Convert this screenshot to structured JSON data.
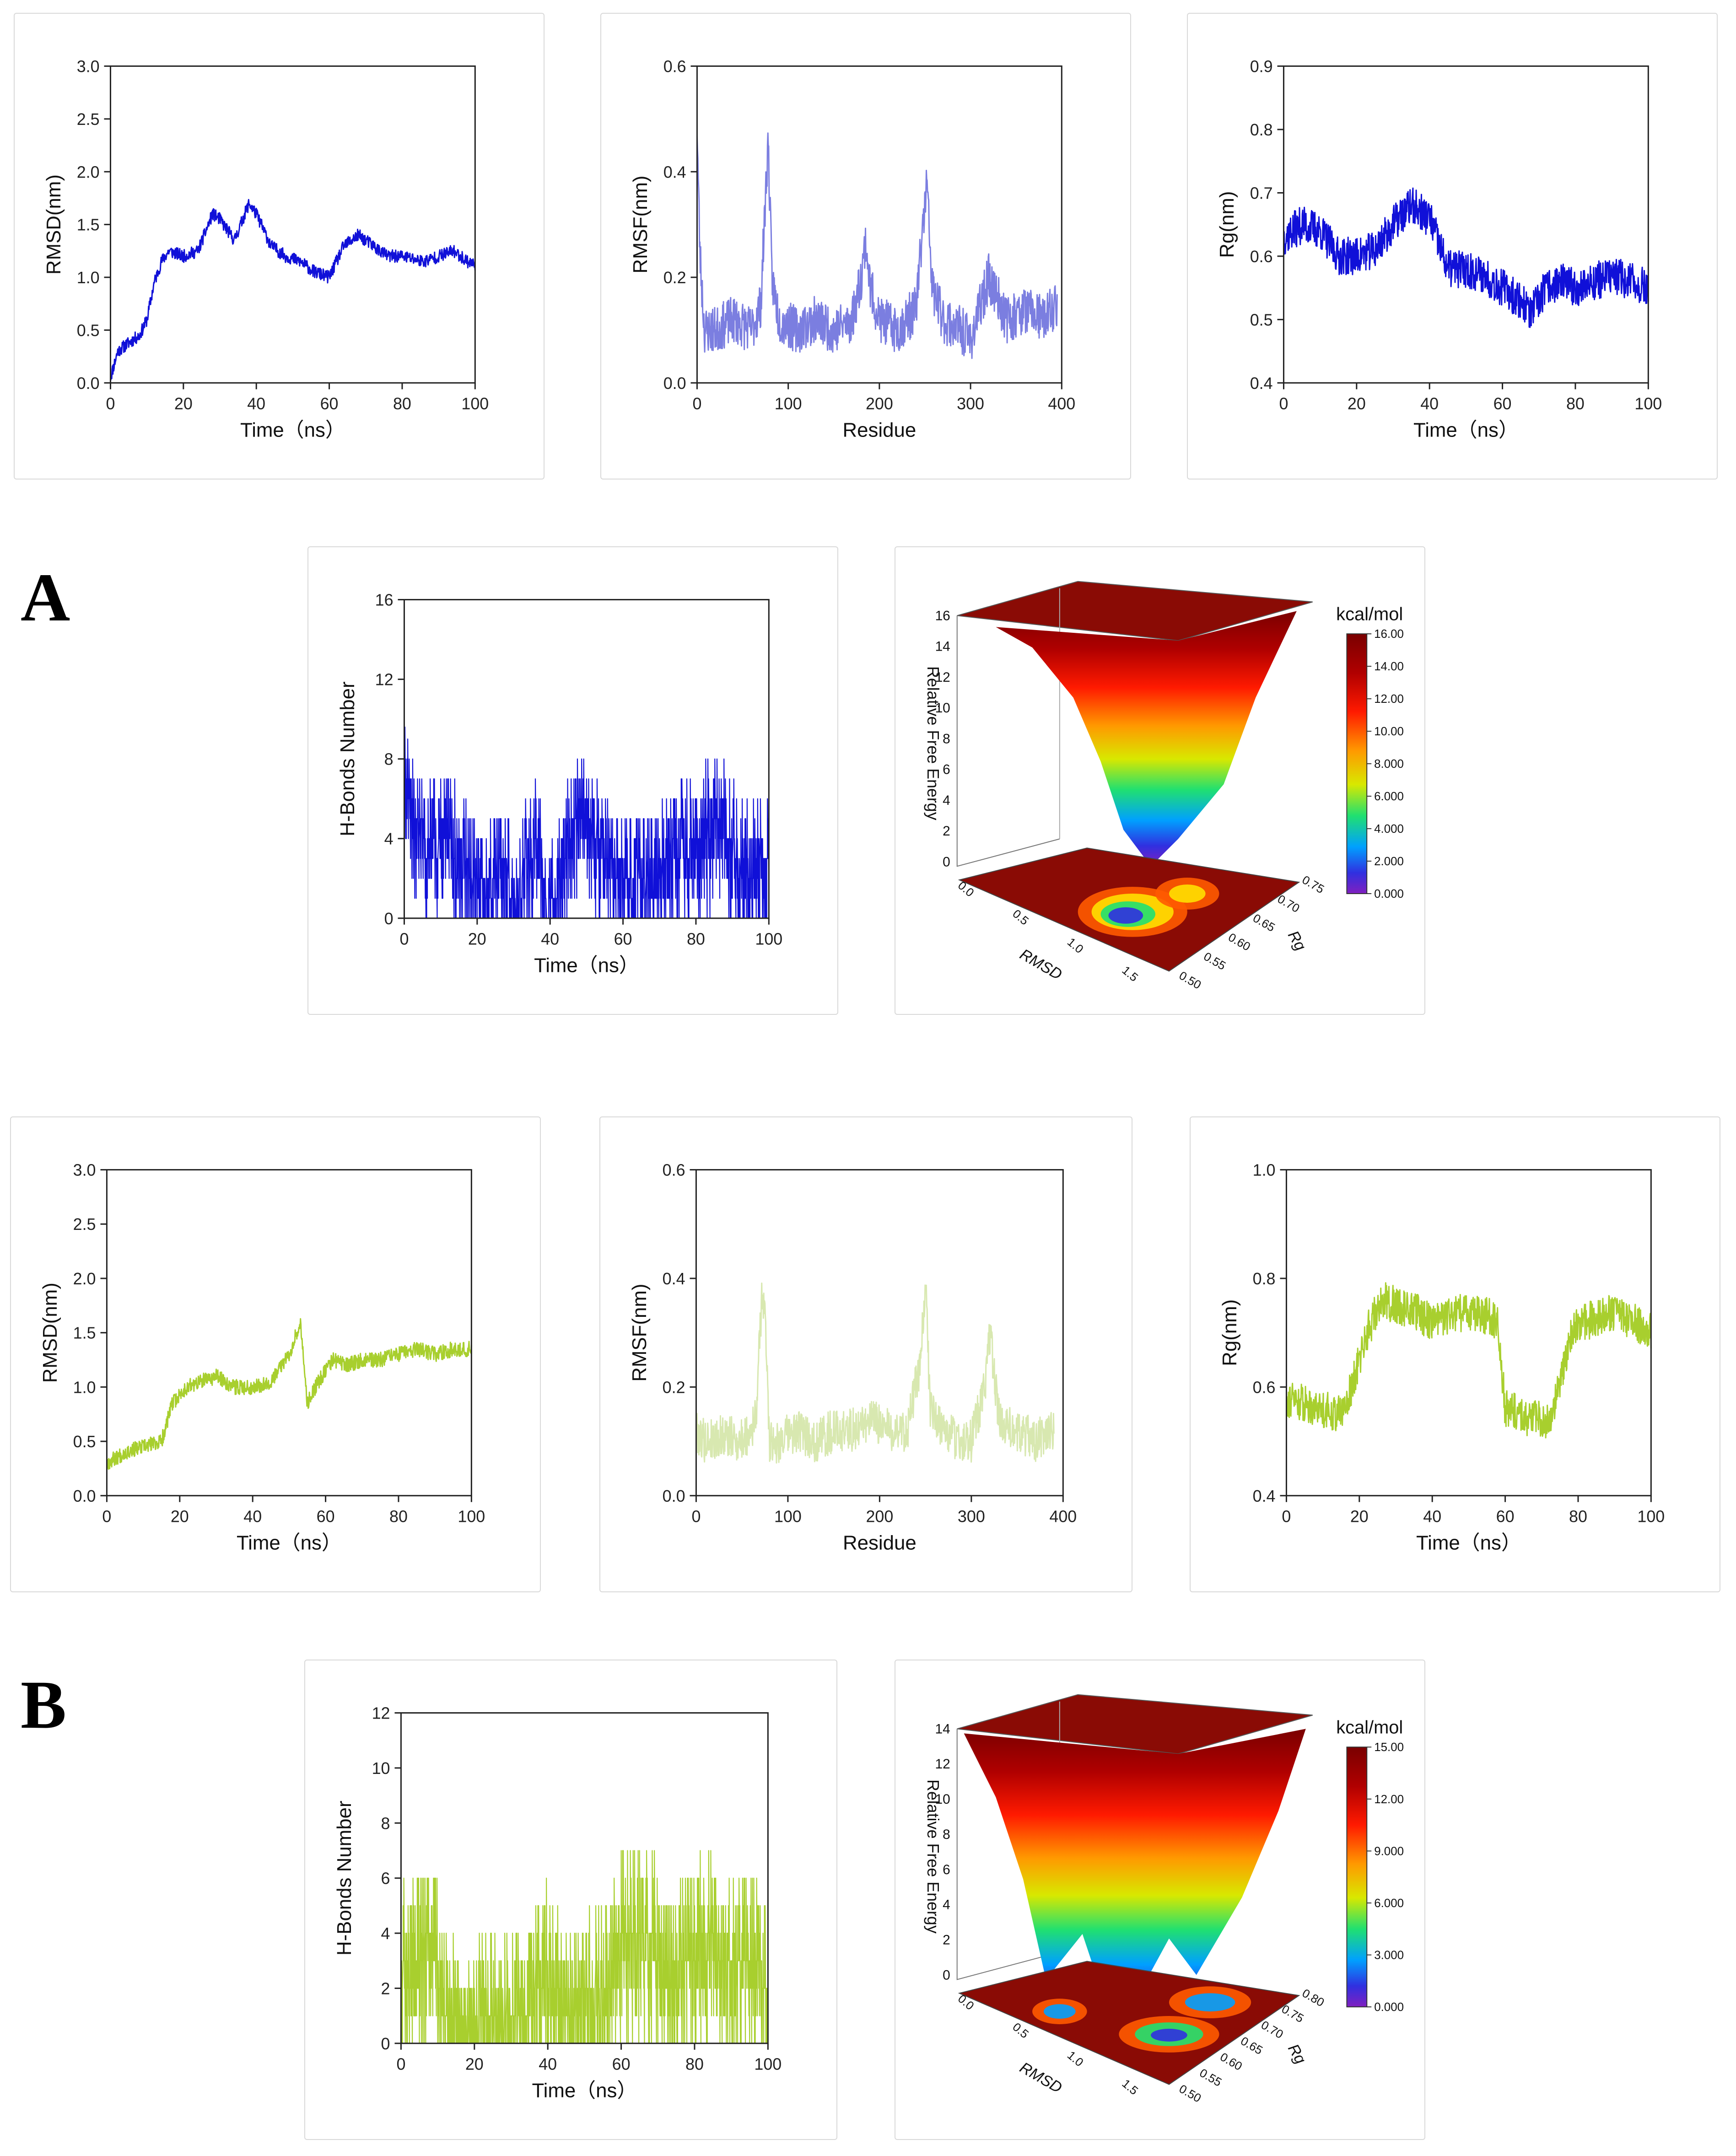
{
  "labels": {
    "a": "A",
    "b": "B"
  },
  "colors": {
    "blue": "#1010d8",
    "blue_light": "#7b7ee0",
    "green": "#a8cf2e",
    "green_light": "#d8e8b0"
  },
  "chart_data": [
    {
      "id": "a-rmsd",
      "type": "line",
      "xlabel": "Time（ns）",
      "ylabel": "RMSD(nm)",
      "xlim": [
        0,
        100
      ],
      "ylim": [
        0,
        3.0
      ],
      "xticks": [
        0,
        20,
        40,
        60,
        80,
        100
      ],
      "yticks": [
        0.0,
        0.5,
        1.0,
        1.5,
        2.0,
        2.5,
        3.0
      ],
      "yfmt": 1,
      "color": "#1010d8",
      "noise": 0.06,
      "seed": 11,
      "x": [
        0,
        2,
        5,
        8,
        10,
        12,
        14,
        16,
        20,
        24,
        28,
        30,
        34,
        38,
        40,
        44,
        48,
        52,
        56,
        60,
        64,
        68,
        72,
        76,
        80,
        86,
        90,
        94,
        98,
        100
      ],
      "y": [
        0.05,
        0.3,
        0.38,
        0.45,
        0.6,
        0.95,
        1.15,
        1.25,
        1.2,
        1.25,
        1.6,
        1.55,
        1.35,
        1.7,
        1.6,
        1.3,
        1.2,
        1.15,
        1.05,
        1.0,
        1.3,
        1.4,
        1.3,
        1.2,
        1.2,
        1.15,
        1.2,
        1.25,
        1.15,
        1.12
      ]
    },
    {
      "id": "a-rmsf",
      "type": "line",
      "xlabel": "Residue",
      "ylabel": "RMSF(nm)",
      "xlim": [
        0,
        400
      ],
      "ylim": [
        0,
        0.6
      ],
      "xticks": [
        0,
        100,
        200,
        300,
        400
      ],
      "yticks": [
        0.0,
        0.2,
        0.4,
        0.6
      ],
      "yfmt": 1,
      "color": "#7b7ee0",
      "noise": 0.045,
      "seed": 23,
      "spiky": true,
      "x": [
        0,
        3,
        8,
        20,
        40,
        60,
        70,
        75,
        78,
        82,
        90,
        110,
        130,
        150,
        170,
        180,
        185,
        190,
        200,
        220,
        240,
        248,
        252,
        258,
        270,
        290,
        300,
        320,
        340,
        360,
        380,
        395
      ],
      "y": [
        0.49,
        0.25,
        0.1,
        0.1,
        0.12,
        0.1,
        0.15,
        0.35,
        0.46,
        0.2,
        0.12,
        0.1,
        0.12,
        0.1,
        0.12,
        0.2,
        0.27,
        0.18,
        0.12,
        0.1,
        0.14,
        0.3,
        0.38,
        0.18,
        0.12,
        0.1,
        0.08,
        0.2,
        0.12,
        0.14,
        0.12,
        0.15
      ]
    },
    {
      "id": "a-rg",
      "type": "line",
      "xlabel": "Time（ns）",
      "ylabel": "Rg(nm)",
      "xlim": [
        0,
        100
      ],
      "ylim": [
        0.4,
        0.9
      ],
      "xticks": [
        0,
        20,
        40,
        60,
        80,
        100
      ],
      "yticks": [
        0.4,
        0.5,
        0.6,
        0.7,
        0.8,
        0.9
      ],
      "yfmt": 1,
      "color": "#1010d8",
      "noise": 0.03,
      "seed": 37,
      "x": [
        0,
        5,
        10,
        15,
        20,
        25,
        30,
        35,
        40,
        45,
        50,
        55,
        60,
        65,
        68,
        72,
        76,
        80,
        85,
        90,
        95,
        100
      ],
      "y": [
        0.63,
        0.65,
        0.64,
        0.6,
        0.6,
        0.61,
        0.65,
        0.68,
        0.66,
        0.58,
        0.58,
        0.57,
        0.55,
        0.53,
        0.51,
        0.55,
        0.56,
        0.55,
        0.56,
        0.57,
        0.56,
        0.55
      ]
    },
    {
      "id": "a-hb",
      "type": "step",
      "xlabel": "Time（ns）",
      "ylabel": "H-Bonds Number",
      "xlim": [
        0,
        100
      ],
      "ylim": [
        0,
        16
      ],
      "xticks": [
        0,
        20,
        40,
        60,
        80,
        100
      ],
      "yticks": [
        0,
        4,
        8,
        12,
        16
      ],
      "yfmt": 0,
      "color": "#1010d8",
      "noise": 2.2,
      "seed": 51,
      "x": [
        0,
        2,
        6,
        12,
        16,
        20,
        24,
        28,
        30,
        34,
        36,
        40,
        44,
        48,
        52,
        56,
        60,
        64,
        68,
        72,
        76,
        80,
        84,
        88,
        92,
        96,
        100
      ],
      "y": [
        9,
        6,
        5,
        5,
        4,
        3,
        3,
        4,
        1,
        4,
        5,
        1,
        5,
        6,
        6,
        4,
        3,
        3,
        3,
        4,
        5,
        5,
        6,
        6,
        4,
        4,
        4
      ]
    },
    {
      "id": "b-rmsd",
      "type": "line",
      "xlabel": "Time（ns）",
      "ylabel": "RMSD(nm)",
      "xlim": [
        0,
        100
      ],
      "ylim": [
        0,
        3.0
      ],
      "xticks": [
        0,
        20,
        40,
        60,
        80,
        100
      ],
      "yticks": [
        0.0,
        0.5,
        1.0,
        1.5,
        2.0,
        2.5,
        3.0
      ],
      "yfmt": 1,
      "color": "#a8cf2e",
      "noise": 0.07,
      "seed": 67,
      "x": [
        0,
        5,
        10,
        15,
        18,
        22,
        26,
        30,
        35,
        40,
        45,
        50,
        53,
        55,
        58,
        62,
        66,
        70,
        75,
        80,
        85,
        90,
        95,
        100
      ],
      "y": [
        0.3,
        0.4,
        0.45,
        0.5,
        0.85,
        1.0,
        1.05,
        1.1,
        1.0,
        1.0,
        1.05,
        1.3,
        1.6,
        0.85,
        1.05,
        1.25,
        1.2,
        1.25,
        1.25,
        1.3,
        1.35,
        1.3,
        1.35,
        1.35
      ]
    },
    {
      "id": "b-rmsf",
      "type": "line",
      "xlabel": "Residue",
      "ylabel": "RMSF(nm)",
      "xlim": [
        0,
        400
      ],
      "ylim": [
        0,
        0.6
      ],
      "xticks": [
        0,
        100,
        200,
        300,
        400
      ],
      "yticks": [
        0.0,
        0.2,
        0.4,
        0.6
      ],
      "yfmt": 1,
      "color": "#d8e8b0",
      "noise": 0.04,
      "seed": 79,
      "spiky": true,
      "x": [
        0,
        10,
        30,
        50,
        65,
        72,
        76,
        80,
        90,
        110,
        130,
        150,
        170,
        190,
        210,
        230,
        245,
        250,
        255,
        270,
        290,
        300,
        315,
        320,
        330,
        350,
        370,
        390
      ],
      "y": [
        0.12,
        0.1,
        0.11,
        0.1,
        0.14,
        0.38,
        0.3,
        0.1,
        0.1,
        0.12,
        0.1,
        0.12,
        0.12,
        0.14,
        0.12,
        0.12,
        0.25,
        0.4,
        0.16,
        0.12,
        0.1,
        0.1,
        0.2,
        0.3,
        0.14,
        0.12,
        0.1,
        0.12
      ]
    },
    {
      "id": "b-rg",
      "type": "line",
      "xlabel": "Time（ns）",
      "ylabel": "Rg(nm)",
      "xlim": [
        0,
        100
      ],
      "ylim": [
        0.4,
        1.0
      ],
      "xticks": [
        0,
        20,
        40,
        60,
        80,
        100
      ],
      "yticks": [
        0.4,
        0.6,
        0.8,
        1.0
      ],
      "yfmt": 1,
      "color": "#a8cf2e",
      "noise": 0.035,
      "seed": 91,
      "x": [
        0,
        5,
        10,
        15,
        18,
        22,
        26,
        30,
        35,
        40,
        45,
        50,
        55,
        58,
        60,
        64,
        68,
        72,
        75,
        78,
        82,
        86,
        90,
        95,
        100
      ],
      "y": [
        0.58,
        0.57,
        0.56,
        0.55,
        0.6,
        0.7,
        0.76,
        0.75,
        0.74,
        0.72,
        0.73,
        0.74,
        0.73,
        0.72,
        0.56,
        0.55,
        0.54,
        0.54,
        0.6,
        0.7,
        0.72,
        0.73,
        0.74,
        0.72,
        0.7
      ]
    },
    {
      "id": "b-hb",
      "type": "step",
      "xlabel": "Time（ns）",
      "ylabel": "H-Bonds Number",
      "xlim": [
        0,
        100
      ],
      "ylim": [
        0,
        12
      ],
      "xticks": [
        0,
        20,
        40,
        60,
        80,
        100
      ],
      "yticks": [
        0,
        2,
        4,
        6,
        8,
        10,
        12
      ],
      "yfmt": 0,
      "color": "#a8cf2e",
      "noise": 2.0,
      "seed": 103,
      "x": [
        0,
        4,
        8,
        12,
        16,
        20,
        24,
        28,
        32,
        36,
        40,
        44,
        48,
        52,
        56,
        60,
        64,
        68,
        72,
        76,
        80,
        84,
        88,
        92,
        96,
        100
      ],
      "y": [
        4,
        4,
        5,
        3,
        1,
        2,
        2,
        2,
        2,
        3,
        4,
        3,
        2,
        3,
        3,
        5,
        5,
        5,
        4,
        4,
        5,
        5,
        4,
        4,
        4,
        3
      ]
    }
  ],
  "fel": [
    {
      "id": "a-fel",
      "zlabel": "Relative Free Energy",
      "xlabel": "RMSD",
      "ylabel": "Rg",
      "zticks": [
        "0",
        "2",
        "4",
        "6",
        "8",
        "10",
        "12",
        "14",
        "16"
      ],
      "xticks": [
        "0.0",
        "0.5",
        "1.0",
        "1.5"
      ],
      "yticks": [
        "0.50",
        "0.55",
        "0.60",
        "0.65",
        "0.70",
        "0.75"
      ],
      "cbar_title": "kcal/mol",
      "cbar_ticks": [
        "16.00",
        "14.00",
        "12.00",
        "10.00",
        "8.000",
        "6.000",
        "4.000",
        "2.000",
        "0.000"
      ]
    },
    {
      "id": "b-fel",
      "zlabel": "Relative Free Energy",
      "xlabel": "RMSD",
      "ylabel": "Rg",
      "zticks": [
        "0",
        "2",
        "4",
        "6",
        "8",
        "10",
        "12",
        "14"
      ],
      "xticks": [
        "0.0",
        "0.5",
        "1.0",
        "1.5"
      ],
      "yticks": [
        "0.50",
        "0.55",
        "0.60",
        "0.65",
        "0.70",
        "0.75",
        "0.80"
      ],
      "cbar_title": "kcal/mol",
      "cbar_ticks": [
        "15.00",
        "12.00",
        "9.000",
        "6.000",
        "3.000",
        "0.000"
      ]
    }
  ]
}
